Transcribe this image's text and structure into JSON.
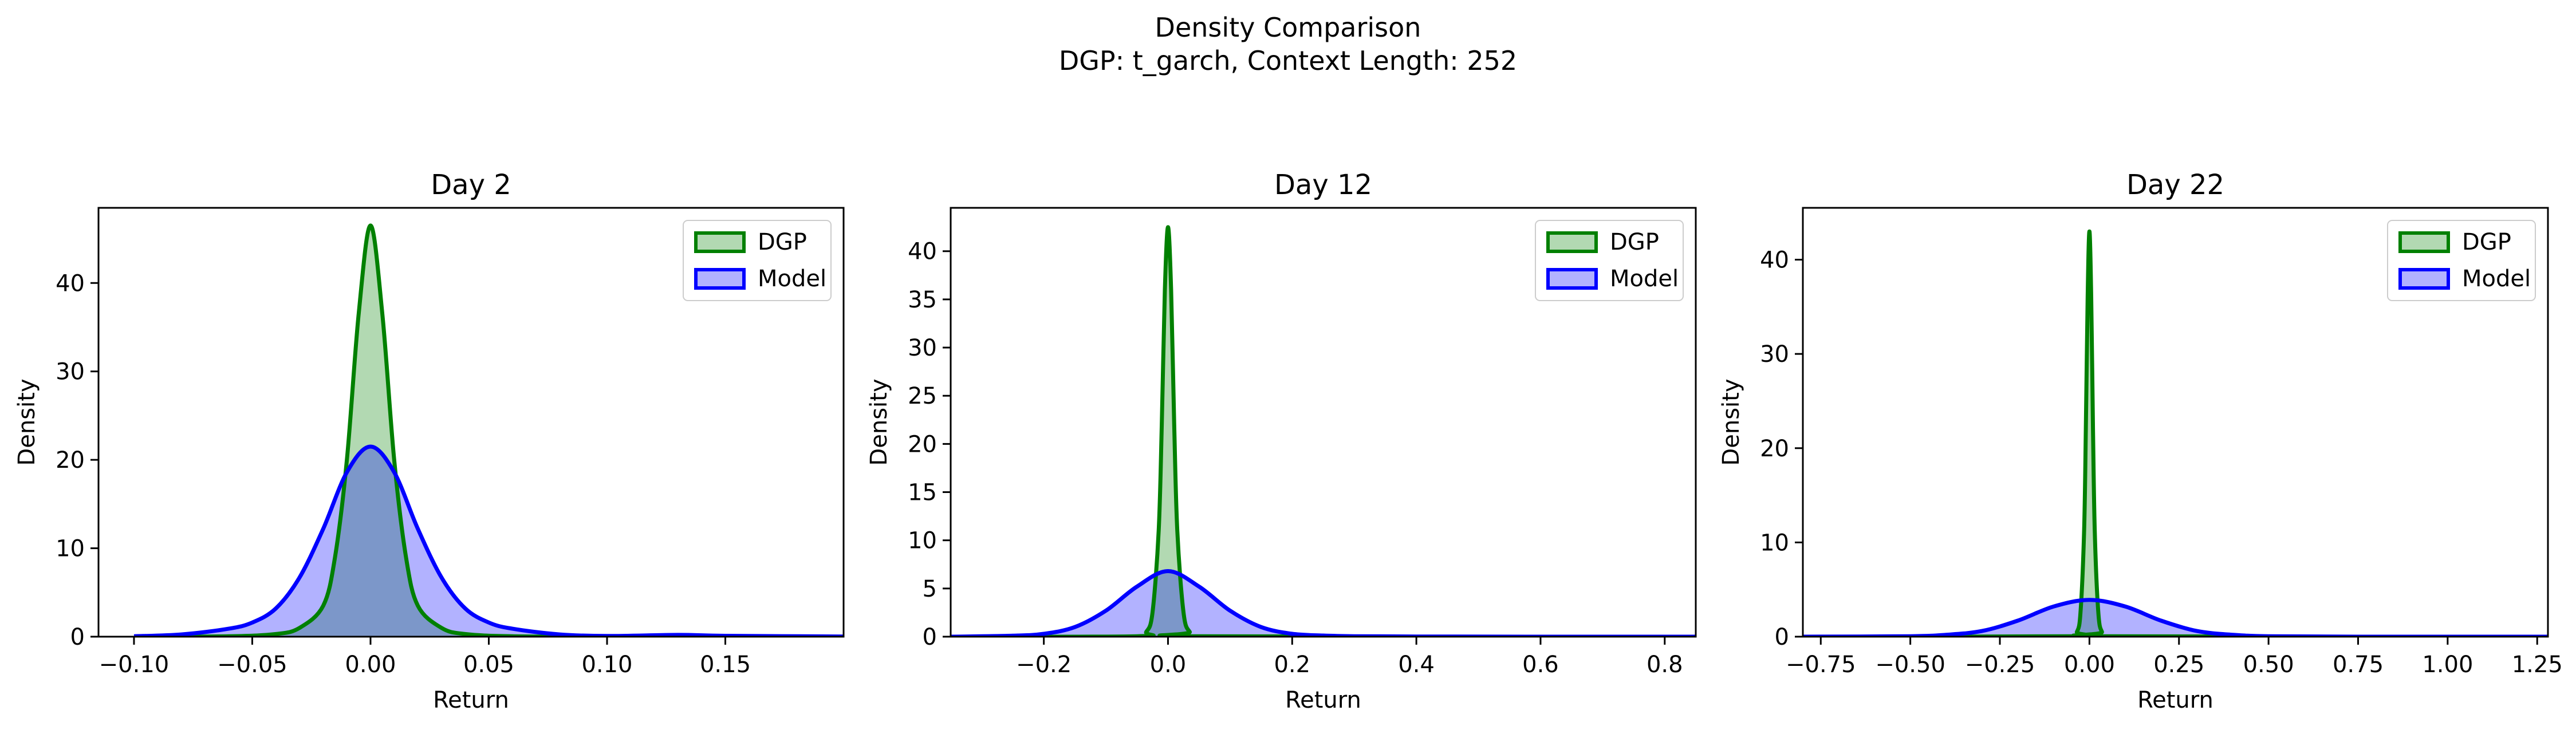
{
  "figure": {
    "title": "Density Comparison",
    "subtitle": "DGP: t_garch, Context Length: 252"
  },
  "colors": {
    "dgp_line": "#008000",
    "dgp_fill": "#008000",
    "model_line": "#0000ff",
    "model_fill": "#0000ff",
    "axes": "#000000",
    "background": "#ffffff"
  },
  "chart_data": [
    {
      "type": "area",
      "title": "Day 2",
      "xlabel": "Return",
      "ylabel": "Density",
      "xlim": [
        -0.115,
        0.2
      ],
      "ylim": [
        0,
        48.5
      ],
      "xticks": [
        -0.1,
        -0.05,
        0.0,
        0.05,
        0.1,
        0.15
      ],
      "xtick_labels": [
        "−0.10",
        "−0.05",
        "0.00",
        "0.05",
        "0.10",
        "0.15"
      ],
      "yticks": [
        0,
        10,
        20,
        30,
        40
      ],
      "ytick_labels": [
        "0",
        "10",
        "20",
        "30",
        "40"
      ],
      "legend": {
        "position": "top-right",
        "entries": [
          "DGP",
          "Model"
        ]
      },
      "grid": false,
      "series": [
        {
          "name": "DGP",
          "color": "#008000",
          "x": [
            -0.1,
            -0.06,
            -0.04,
            -0.03,
            -0.02,
            -0.015,
            -0.01,
            -0.005,
            0.0,
            0.005,
            0.01,
            0.015,
            0.02,
            0.03,
            0.04,
            0.06,
            0.1
          ],
          "y": [
            0,
            0.05,
            0.3,
            1.0,
            3.5,
            9,
            20,
            36.5,
            46.5,
            36.5,
            20,
            9,
            3.5,
            1.0,
            0.3,
            0.05,
            0
          ]
        },
        {
          "name": "Model",
          "color": "#0000ff",
          "x": [
            -0.1,
            -0.08,
            -0.06,
            -0.05,
            -0.04,
            -0.03,
            -0.02,
            -0.01,
            0.0,
            0.01,
            0.02,
            0.03,
            0.04,
            0.05,
            0.06,
            0.08,
            0.1,
            0.13,
            0.15,
            0.2
          ],
          "y": [
            0.05,
            0.25,
            0.9,
            1.6,
            3.2,
            6.7,
            12.2,
            18.6,
            21.5,
            18.6,
            12.2,
            6.7,
            3.2,
            1.6,
            0.9,
            0.25,
            0.08,
            0.2,
            0.1,
            0.02
          ]
        }
      ]
    },
    {
      "type": "area",
      "title": "Day 12",
      "xlabel": "Return",
      "ylabel": "Density",
      "xlim": [
        -0.35,
        0.85
      ],
      "ylim": [
        0,
        44.5
      ],
      "xticks": [
        -0.2,
        0.0,
        0.2,
        0.4,
        0.6,
        0.8
      ],
      "xtick_labels": [
        "−0.2",
        "0.0",
        "0.2",
        "0.4",
        "0.6",
        "0.8"
      ],
      "yticks": [
        0,
        5,
        10,
        15,
        20,
        25,
        30,
        35,
        40
      ],
      "ytick_labels": [
        "0",
        "5",
        "10",
        "15",
        "20",
        "25",
        "30",
        "35",
        "40"
      ],
      "legend": {
        "position": "top-right",
        "entries": [
          "DGP",
          "Model"
        ]
      },
      "grid": false,
      "series": [
        {
          "name": "DGP",
          "color": "#008000",
          "x": [
            -0.35,
            -0.05,
            -0.035,
            -0.025,
            -0.015,
            -0.01,
            -0.005,
            0.0,
            0.005,
            0.01,
            0.015,
            0.025,
            0.035,
            0.05,
            0.85
          ],
          "y": [
            0,
            0.05,
            0.5,
            2.5,
            11,
            22,
            36,
            42.5,
            36,
            22,
            11,
            2.5,
            0.5,
            0.05,
            0
          ]
        },
        {
          "name": "Model",
          "color": "#0000ff",
          "x": [
            -0.35,
            -0.25,
            -0.2,
            -0.15,
            -0.1,
            -0.05,
            0.0,
            0.05,
            0.1,
            0.15,
            0.2,
            0.25,
            0.3,
            0.4,
            0.6,
            0.85
          ],
          "y": [
            0.0,
            0.1,
            0.3,
            1.0,
            2.7,
            5.2,
            6.8,
            5.2,
            2.7,
            1.0,
            0.3,
            0.12,
            0.05,
            0.02,
            0.0,
            0.0
          ]
        }
      ]
    },
    {
      "type": "area",
      "title": "Day 22",
      "xlabel": "Return",
      "ylabel": "Density",
      "xlim": [
        -0.8,
        1.28
      ],
      "ylim": [
        0,
        45.5
      ],
      "xticks": [
        -0.75,
        -0.5,
        -0.25,
        0.0,
        0.25,
        0.5,
        0.75,
        1.0,
        1.25
      ],
      "xtick_labels": [
        "−0.75",
        "−0.50",
        "−0.25",
        "0.00",
        "0.25",
        "0.50",
        "0.75",
        "1.00",
        "1.25"
      ],
      "yticks": [
        0,
        10,
        20,
        30,
        40
      ],
      "ytick_labels": [
        "0",
        "10",
        "20",
        "30",
        "40"
      ],
      "legend": {
        "position": "top-right",
        "entries": [
          "DGP",
          "Model"
        ]
      },
      "grid": false,
      "series": [
        {
          "name": "DGP",
          "color": "#008000",
          "x": [
            -0.8,
            -0.05,
            -0.035,
            -0.025,
            -0.015,
            -0.01,
            -0.005,
            0.0,
            0.005,
            0.01,
            0.015,
            0.025,
            0.035,
            0.05,
            1.28
          ],
          "y": [
            0,
            0.05,
            0.5,
            2.5,
            11,
            22,
            36,
            43,
            36,
            22,
            11,
            2.5,
            0.5,
            0.05,
            0
          ]
        },
        {
          "name": "Model",
          "color": "#0000ff",
          "x": [
            -0.8,
            -0.5,
            -0.4,
            -0.3,
            -0.2,
            -0.1,
            0.0,
            0.1,
            0.2,
            0.3,
            0.4,
            0.5,
            0.75,
            1.28
          ],
          "y": [
            0.0,
            0.05,
            0.2,
            0.6,
            1.7,
            3.2,
            3.9,
            3.2,
            1.7,
            0.6,
            0.2,
            0.05,
            0.0,
            0.0
          ]
        }
      ]
    }
  ]
}
